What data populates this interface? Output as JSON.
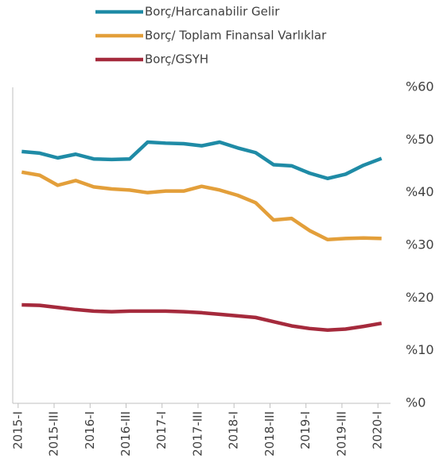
{
  "chart_data": {
    "type": "line",
    "categories": [
      "2015-I",
      null,
      "2015-III",
      null,
      "2016-I",
      null,
      "2016-III",
      null,
      "2017-I",
      null,
      "2017-III",
      null,
      "2018-I",
      null,
      "2018-III",
      null,
      "2019-I",
      null,
      "2019-III",
      null,
      "2020-I"
    ],
    "series": [
      {
        "name": "Borç/Harcanabilir Gelir",
        "color": "#1f8ba6",
        "values": [
          47.8,
          47.5,
          46.6,
          47.3,
          46.4,
          46.3,
          46.4,
          49.6,
          49.4,
          49.3,
          48.9,
          49.6,
          48.5,
          47.6,
          45.3,
          45.1,
          43.7,
          42.7,
          43.5,
          45.2,
          46.5
        ]
      },
      {
        "name": "Borç/ Toplam Finansal Varlıklar",
        "color": "#e39f3a",
        "values": [
          43.9,
          43.3,
          41.4,
          42.3,
          41.1,
          40.7,
          40.5,
          40.0,
          40.3,
          40.3,
          41.2,
          40.5,
          39.5,
          38.1,
          34.8,
          35.1,
          32.8,
          31.1,
          31.3,
          31.4,
          31.3
        ]
      },
      {
        "name": "Borç/GSYH",
        "color": "#a52a3c",
        "values": [
          18.7,
          18.6,
          18.2,
          17.8,
          17.5,
          17.4,
          17.5,
          17.5,
          17.5,
          17.4,
          17.2,
          16.9,
          16.6,
          16.3,
          15.5,
          14.7,
          14.2,
          13.9,
          14.1,
          14.6,
          15.2
        ]
      }
    ],
    "ylim": [
      0,
      60
    ],
    "yticks": [
      {
        "value": 0,
        "label": "%0"
      },
      {
        "value": 10,
        "label": "%10"
      },
      {
        "value": 20,
        "label": "%20"
      },
      {
        "value": 30,
        "label": "%30"
      },
      {
        "value": 40,
        "label": "%40"
      },
      {
        "value": 50,
        "label": "%50"
      },
      {
        "value": 60,
        "label": "%60"
      }
    ],
    "grid": false
  }
}
